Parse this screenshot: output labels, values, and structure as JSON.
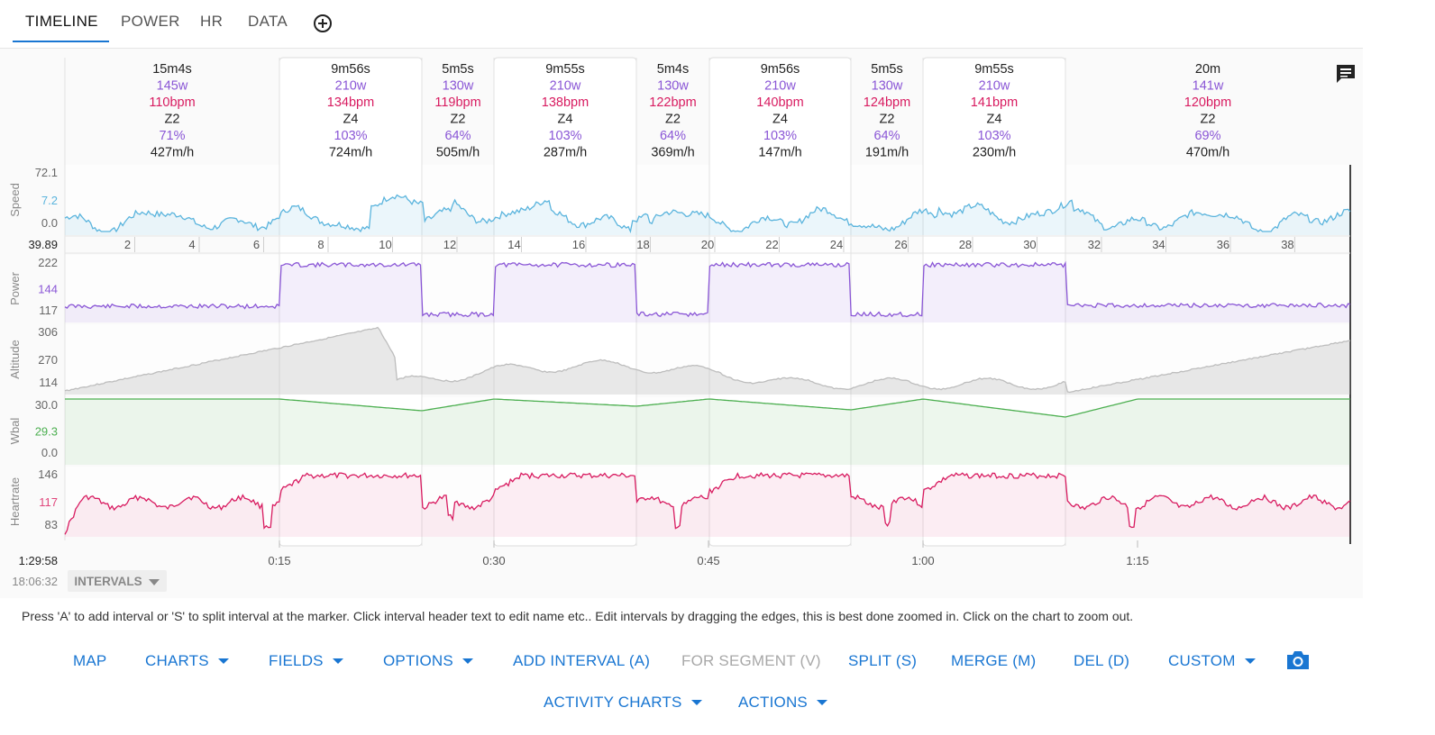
{
  "tabs": [
    {
      "label": "TIMELINE",
      "active": true
    },
    {
      "label": "POWER"
    },
    {
      "label": "HR"
    },
    {
      "label": "DATA"
    }
  ],
  "add_tab_icon": "plus-circle-icon",
  "comment_icon": "comment-icon",
  "intervals": [
    {
      "time": "15m4s",
      "power": "145w",
      "hr": "110bpm",
      "zone": "Z2",
      "pct": "71%",
      "vam": "427m/h",
      "selected": false
    },
    {
      "time": "9m56s",
      "power": "210w",
      "hr": "134bpm",
      "zone": "Z4",
      "pct": "103%",
      "vam": "724m/h",
      "selected": true
    },
    {
      "time": "5m5s",
      "power": "130w",
      "hr": "119bpm",
      "zone": "Z2",
      "pct": "64%",
      "vam": "505m/h",
      "selected": false
    },
    {
      "time": "9m55s",
      "power": "210w",
      "hr": "138bpm",
      "zone": "Z4",
      "pct": "103%",
      "vam": "287m/h",
      "selected": true
    },
    {
      "time": "5m4s",
      "power": "130w",
      "hr": "122bpm",
      "zone": "Z2",
      "pct": "64%",
      "vam": "369m/h",
      "selected": false
    },
    {
      "time": "9m56s",
      "power": "210w",
      "hr": "140bpm",
      "zone": "Z4",
      "pct": "103%",
      "vam": "147m/h",
      "selected": true
    },
    {
      "time": "5m5s",
      "power": "130w",
      "hr": "124bpm",
      "zone": "Z2",
      "pct": "64%",
      "vam": "191m/h",
      "selected": false
    },
    {
      "time": "9m55s",
      "power": "210w",
      "hr": "141bpm",
      "zone": "Z4",
      "pct": "103%",
      "vam": "230m/h",
      "selected": true
    },
    {
      "time": "20m",
      "power": "141w",
      "hr": "120bpm",
      "zone": "Z2",
      "pct": "69%",
      "vam": "470m/h",
      "selected": false
    }
  ],
  "charts": [
    {
      "name": "Speed",
      "ticks": [
        "72.1",
        "7.2",
        "0.0"
      ],
      "highlight": 1,
      "color": "#5ab4dd"
    },
    {
      "name": "Power",
      "ticks": [
        "222",
        "144",
        "117"
      ],
      "highlight": 1,
      "color": "#8a56d6"
    },
    {
      "name": "Altitude",
      "ticks": [
        "306",
        "270",
        "114"
      ],
      "highlight": -1,
      "color": "#c9c9c9"
    },
    {
      "name": "Wbal",
      "ticks": [
        "30.0",
        "29.3",
        "0.0"
      ],
      "highlight": 1,
      "color": "#4caf50"
    },
    {
      "name": "Heartrate",
      "ticks": [
        "146",
        "117",
        "83"
      ],
      "highlight": 1,
      "color": "#e0457b"
    }
  ],
  "distance": {
    "total": "39.89",
    "marks": [
      "2",
      "4",
      "6",
      "8",
      "10",
      "12",
      "14",
      "16",
      "18",
      "20",
      "22",
      "24",
      "26",
      "28",
      "30",
      "32",
      "34",
      "36",
      "38"
    ]
  },
  "time_axis": {
    "total": "1:29:58",
    "start": "18:06:32",
    "labels": [
      "0:15",
      "0:30",
      "0:45",
      "1:00",
      "1:15"
    ]
  },
  "intervals_dropdown": "INTERVALS",
  "help_text": "Press 'A' to add interval or 'S' to split interval at the marker. Click interval header text to edit name etc.. Edit intervals by dragging the edges, this is best done zoomed in. Click on the chart to zoom out.",
  "toolbar": {
    "map": "MAP",
    "charts": "CHARTS",
    "fields": "FIELDS",
    "options": "OPTIONS",
    "add_interval": "ADD INTERVAL (A)",
    "for_segment": "FOR SEGMENT (V)",
    "split": "SPLIT (S)",
    "merge": "MERGE (M)",
    "del": "DEL (D)",
    "custom": "CUSTOM",
    "activity_charts": "ACTIVITY CHARTS",
    "actions": "ACTIONS",
    "camera_icon": "camera-icon"
  },
  "colors": {
    "accent": "#1976d2",
    "power": "#8a56d6",
    "hr": "#d81b60",
    "zone": "#222222",
    "speed": "#5ab4dd",
    "wbal": "#4caf50"
  }
}
